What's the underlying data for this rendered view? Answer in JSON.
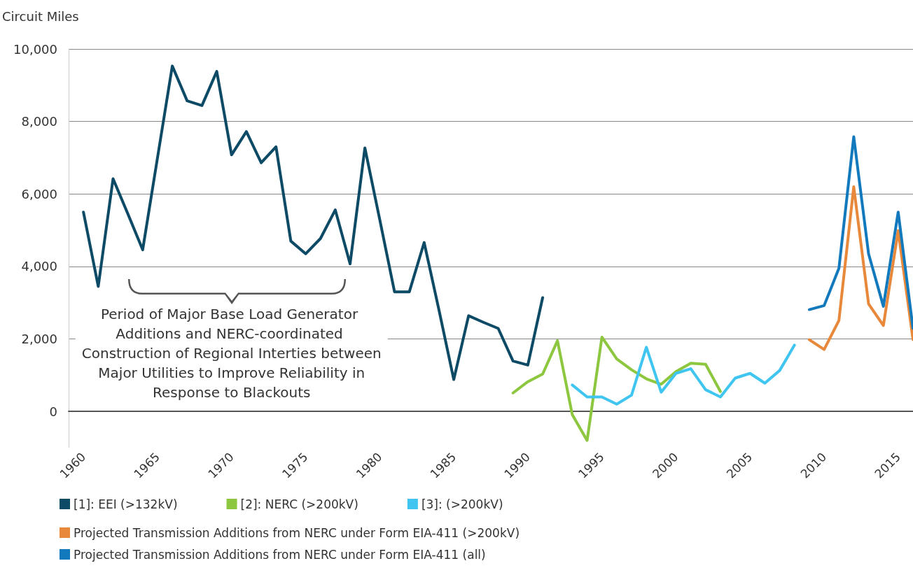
{
  "chart_data": {
    "type": "line",
    "ylabel": "Circuit Miles",
    "xlim": [
      1959,
      2016
    ],
    "xticks": [
      1960,
      1965,
      1970,
      1975,
      1980,
      1985,
      1990,
      1995,
      2000,
      2005,
      2010,
      2015
    ],
    "ylim": [
      -1000,
      10000
    ],
    "yticks": [
      0,
      {
        "value": 2000,
        "label": "2,000"
      },
      {
        "value": 4000,
        "label": "4,000"
      },
      {
        "value": 6000,
        "label": "6,000"
      },
      {
        "value": 8000,
        "label": "8,000"
      },
      {
        "value": 10000,
        "label": "10,000"
      }
    ],
    "grid": "y",
    "legend": "bottom",
    "marker": "none",
    "line_style": "solid",
    "annotations": [
      "Period of Major Base Load Generator Additions and NERC-coordinated Construction of Regional Interties between Major Utilities to Improve Reliability in Response to Blackouts"
    ],
    "series": [
      {
        "name": "[1]: EEI (>132kV)",
        "color": "#0d4a66",
        "x": [
          1960,
          1961,
          1962,
          1963,
          1964,
          1965,
          1966,
          1967,
          1968,
          1969,
          1970,
          1971,
          1972,
          1973,
          1974,
          1975,
          1976,
          1977,
          1978,
          1979,
          1980,
          1981,
          1982,
          1983,
          1984,
          1985,
          1986,
          1987,
          1988,
          1989,
          1990,
          1991
        ],
        "values": [
          5500,
          3450,
          6420,
          5450,
          4460,
          7000,
          9530,
          8570,
          8440,
          9380,
          7080,
          7720,
          6860,
          7300,
          4700,
          4350,
          4770,
          5560,
          4070,
          7270,
          5300,
          3300,
          3300,
          4660,
          2800,
          880,
          2640,
          2460,
          2290,
          1390,
          1280,
          3140
        ]
      },
      {
        "name": "[2]: NERC (>200kV)",
        "color": "#8dc63f",
        "x": [
          1989,
          1990,
          1991,
          1992,
          1993,
          1994,
          1995,
          1996,
          1997,
          1998,
          1999,
          2000,
          2001,
          2002,
          2003
        ],
        "values": [
          510,
          820,
          1030,
          1950,
          -90,
          -800,
          2050,
          1450,
          1150,
          900,
          750,
          1100,
          1330,
          1300,
          550
        ]
      },
      {
        "name": "[3]: (>200kV)",
        "color": "#3fc5f0",
        "x": [
          1993,
          1994,
          1995,
          1996,
          1997,
          1998,
          1999,
          2000,
          2001,
          2002,
          2003,
          2004,
          2005,
          2006,
          2007,
          2008
        ],
        "values": [
          730,
          400,
          400,
          200,
          450,
          1770,
          530,
          1050,
          1180,
          600,
          400,
          920,
          1050,
          780,
          1130,
          1830
        ]
      },
      {
        "name": "Projected Transmission Additions from NERC under Form EIA-411 (>200kV)",
        "color": "#e8883a",
        "x": [
          2009,
          2010,
          2011,
          2012,
          2013,
          2014,
          2015,
          2016
        ],
        "values": [
          1980,
          1710,
          2510,
          6200,
          2970,
          2370,
          4990,
          1980
        ]
      },
      {
        "name": "Projected Transmission Additions from NERC under Form EIA-411 (all)",
        "color": "#1279bd",
        "x": [
          2009,
          2010,
          2011,
          2012,
          2013,
          2014,
          2015,
          2016
        ],
        "values": [
          2810,
          2920,
          3950,
          7580,
          4350,
          2900,
          5500,
          2290
        ]
      }
    ]
  }
}
